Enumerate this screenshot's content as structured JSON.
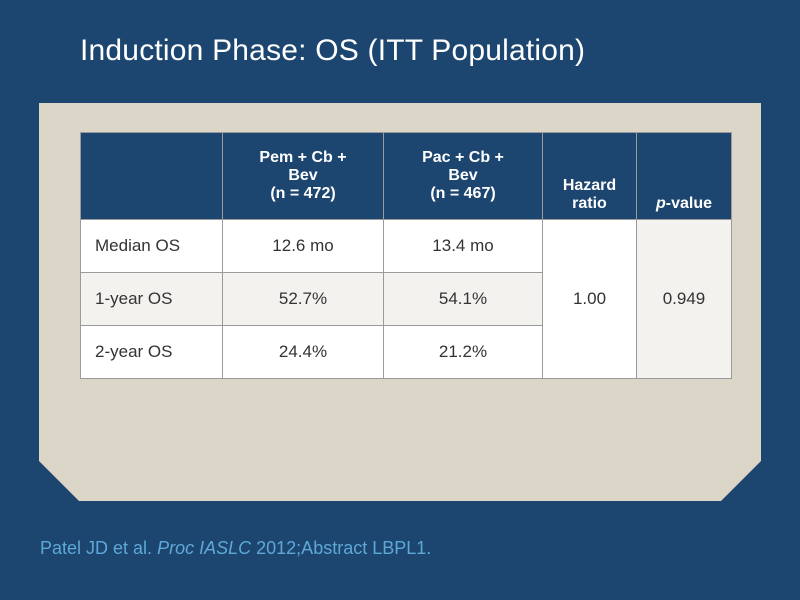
{
  "slide": {
    "title": "Induction Phase: OS (ITT Population)"
  },
  "table": {
    "headers": {
      "col1": "",
      "col2_line1": "Pem + Cb +",
      "col2_line2": "Bev",
      "col2_line3": "(n = 472)",
      "col3_line1": "Pac + Cb +",
      "col3_line2": "Bev",
      "col3_line3": "(n = 467)",
      "col4_line1": "Hazard",
      "col4_line2": "ratio",
      "col5_italic": "p",
      "col5_rest": "-value"
    },
    "rows": [
      {
        "label": "Median OS",
        "pem": "12.6 mo",
        "pac": "13.4 mo"
      },
      {
        "label": "1-year OS",
        "pem": "52.7%",
        "pac": "54.1%"
      },
      {
        "label": "2-year OS",
        "pem": "24.4%",
        "pac": "21.2%"
      }
    ],
    "hazard_ratio": "1.00",
    "p_value": "0.949"
  },
  "citation": {
    "authors": "Patel JD et al.",
    "journal": "Proc IASLC",
    "rest": "2012;Abstract LBPL1."
  },
  "colors": {
    "background": "#1c466f",
    "panel": "#dcd6c9",
    "header_fill": "#1c466f",
    "citation_text": "#5ea8d8"
  }
}
